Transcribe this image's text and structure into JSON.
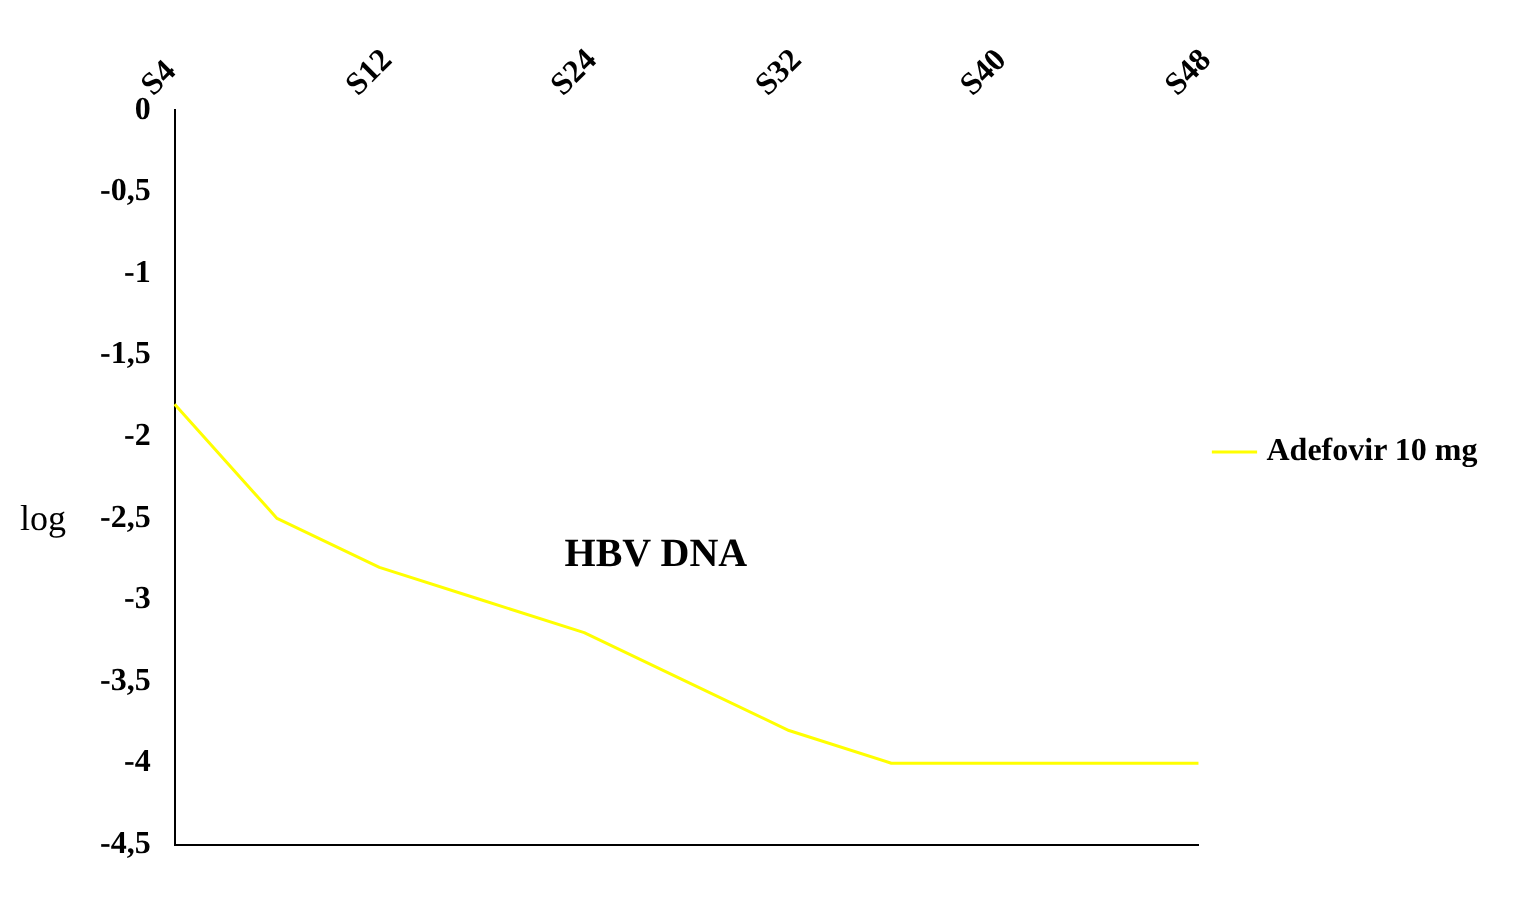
{
  "chart_data": {
    "type": "line",
    "ylabel": "log",
    "annotations": [
      "HBV DNA"
    ],
    "categories": [
      "S4",
      null,
      "S12",
      null,
      "S24",
      null,
      "S32",
      null,
      "S40",
      null,
      "S48"
    ],
    "series": [
      {
        "name": "Adefovir 10 mg",
        "color": "#ffff00",
        "values": [
          -1.8,
          -2.5,
          -2.8,
          -3.0,
          -3.2,
          -3.5,
          -3.8,
          -4,
          -4,
          -4,
          -4
        ]
      }
    ],
    "ylim": [
      -4.5,
      0
    ],
    "yticks": [
      0,
      {
        "value": -0.5,
        "label": "-0,5"
      },
      -1,
      {
        "value": -1.5,
        "label": "-1,5"
      },
      -2,
      {
        "value": -2.5,
        "label": "-2,5"
      },
      -3,
      {
        "value": -3.5,
        "label": "-3,5"
      },
      -4,
      {
        "value": -4.5,
        "label": "-4,5"
      }
    ],
    "grid": false,
    "legend": "right",
    "marker": "none",
    "line_style": "solid"
  }
}
